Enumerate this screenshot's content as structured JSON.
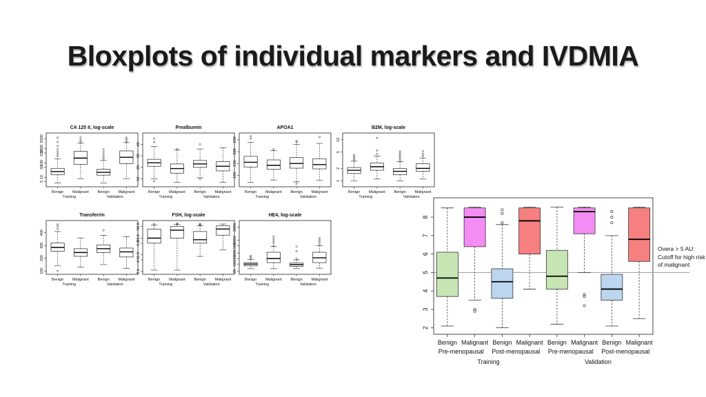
{
  "title": "Bloxplots of individual markers and IVDMIA",
  "small_common": {
    "group_labels": [
      "Benign",
      "Malignant",
      "Benign",
      "Malignant"
    ],
    "cohort_labels": [
      "Training",
      "Validation"
    ]
  },
  "chart_data": [
    {
      "type": "box",
      "title": "CA 125 II, log-scale",
      "scale": "log",
      "ylim": [
        3,
        9000
      ],
      "yticks": [
        5,
        10,
        50,
        100,
        500,
        1000,
        5000
      ],
      "ytick_labels": [
        "5",
        "10",
        "50",
        "100",
        "500",
        "1000",
        "5000"
      ],
      "categories": [
        "Benign",
        "Malignant",
        "Benign",
        "Malignant"
      ],
      "cohorts": [
        "Training",
        "Validation"
      ],
      "boxes": [
        {
          "low": 4,
          "q1": 15,
          "median": 25,
          "q3": 42,
          "high": 200,
          "outliers": [
            300,
            420,
            600,
            900,
            1500,
            3000,
            6000
          ]
        },
        {
          "low": 8,
          "q1": 80,
          "median": 220,
          "q3": 650,
          "high": 2500,
          "outliers": [
            3000,
            4000,
            6000
          ]
        },
        {
          "low": 4,
          "q1": 14,
          "median": 22,
          "q3": 36,
          "high": 150,
          "outliers": [
            200,
            280,
            400,
            600,
            900
          ]
        },
        {
          "low": 8,
          "q1": 90,
          "median": 250,
          "q3": 700,
          "high": 2700,
          "outliers": [
            3200,
            4500,
            6000
          ]
        }
      ]
    },
    {
      "type": "box",
      "title": "Prealbumin",
      "scale": "linear",
      "ylim": [
        5,
        48
      ],
      "yticks": [
        10,
        20,
        30,
        40
      ],
      "ytick_labels": [
        "10",
        "20",
        "30",
        "40"
      ],
      "categories": [
        "Benign",
        "Malignant",
        "Benign",
        "Malignant"
      ],
      "cohorts": [
        "Training",
        "Validation"
      ],
      "boxes": [
        {
          "low": 10,
          "q1": 21,
          "median": 24,
          "q3": 27,
          "high": 38,
          "outliers": [
            8,
            42,
            45
          ]
        },
        {
          "low": 7,
          "q1": 15,
          "median": 19,
          "q3": 23,
          "high": 35,
          "outliers": [
            36
          ]
        },
        {
          "low": 11,
          "q1": 20,
          "median": 23,
          "q3": 26,
          "high": 36,
          "outliers": [
            10,
            40
          ]
        },
        {
          "low": 7,
          "q1": 17,
          "median": 21,
          "q3": 25,
          "high": 37,
          "outliers": []
        }
      ]
    },
    {
      "type": "box",
      "title": "APOA1",
      "scale": "linear",
      "ylim": [
        60,
        270
      ],
      "yticks": [
        100,
        150,
        200,
        250
      ],
      "ytick_labels": [
        "100",
        "150",
        "200",
        "250"
      ],
      "categories": [
        "Benign",
        "Malignant",
        "Benign",
        "Malignant"
      ],
      "cohorts": [
        "Training",
        "Validation"
      ],
      "boxes": [
        {
          "low": 70,
          "q1": 135,
          "median": 155,
          "q3": 180,
          "high": 240,
          "outliers": [
            255,
            265
          ]
        },
        {
          "low": 80,
          "q1": 125,
          "median": 142,
          "q3": 165,
          "high": 205,
          "outliers": [
            210
          ]
        },
        {
          "low": 72,
          "q1": 130,
          "median": 150,
          "q3": 175,
          "high": 230,
          "outliers": [
            240,
            245,
            65
          ]
        },
        {
          "low": 78,
          "q1": 127,
          "median": 145,
          "q3": 170,
          "high": 235,
          "outliers": [
            262
          ]
        }
      ]
    },
    {
      "type": "box",
      "title": "B2M, log-scale",
      "scale": "log",
      "ylim": [
        0.8,
        13
      ],
      "yticks": [
        1,
        2,
        5,
        10
      ],
      "ytick_labels": [
        "1",
        "2",
        "5",
        "10"
      ],
      "categories": [
        "Benign",
        "Malignant",
        "Benign",
        "Malignant"
      ],
      "cohorts": [
        "Training",
        "Validation"
      ],
      "boxes": [
        {
          "low": 1.0,
          "q1": 1.5,
          "median": 1.8,
          "q3": 2.1,
          "high": 3.0,
          "outliers": [
            3.2,
            3.5,
            3.8,
            4.2
          ]
        },
        {
          "low": 1.1,
          "q1": 1.8,
          "median": 2.2,
          "q3": 2.7,
          "high": 4.0,
          "outliers": [
            4.5,
            5.5,
            11
          ]
        },
        {
          "low": 1.0,
          "q1": 1.4,
          "median": 1.7,
          "q3": 2.0,
          "high": 2.9,
          "outliers": [
            3.1,
            3.4,
            3.8,
            4.2,
            4.6,
            5.2
          ]
        },
        {
          "low": 1.1,
          "q1": 1.7,
          "median": 2.0,
          "q3": 2.6,
          "high": 3.6,
          "outliers": [
            4.0,
            4.5,
            5.2
          ]
        }
      ]
    },
    {
      "type": "box",
      "title": "Transferrin",
      "scale": "linear",
      "ylim": [
        90,
        480
      ],
      "yticks": [
        100,
        200,
        300,
        400
      ],
      "ytick_labels": [
        "100",
        "200",
        "300",
        "400"
      ],
      "categories": [
        "Benign",
        "Malignant",
        "Benign",
        "Malignant"
      ],
      "cohorts": [
        "Training",
        "Validation"
      ],
      "boxes": [
        {
          "low": 140,
          "q1": 255,
          "median": 285,
          "q3": 320,
          "high": 410,
          "outliers": [
            430,
            450,
            465,
            100
          ]
        },
        {
          "low": 130,
          "q1": 215,
          "median": 245,
          "q3": 275,
          "high": 360,
          "outliers": []
        },
        {
          "low": 150,
          "q1": 245,
          "median": 275,
          "q3": 305,
          "high": 380,
          "outliers": [
            420
          ]
        },
        {
          "low": 120,
          "q1": 210,
          "median": 250,
          "q3": 280,
          "high": 370,
          "outliers": []
        }
      ]
    },
    {
      "type": "box",
      "title": "FSH, log-scale",
      "scale": "log",
      "ylim": [
        0.09,
        85
      ],
      "yticks": [
        0.1,
        0.5,
        1.0,
        5.0,
        10.0,
        50.0
      ],
      "ytick_labels": [
        "0.1",
        "0.5",
        "1.0",
        "5.0",
        "10.0",
        "50.0"
      ],
      "categories": [
        "Benign",
        "Malignant",
        "Benign",
        "Malignant"
      ],
      "cohorts": [
        "Training",
        "Validation"
      ],
      "boxes": [
        {
          "low": 0.12,
          "q1": 5,
          "median": 10,
          "q3": 35,
          "high": 60,
          "outliers": [
            70
          ]
        },
        {
          "low": 0.12,
          "q1": 10,
          "median": 30,
          "q3": 50,
          "high": 65,
          "outliers": [
            70,
            75
          ]
        },
        {
          "low": 0.8,
          "q1": 5,
          "median": 8,
          "q3": 25,
          "high": 55,
          "outliers": [
            60,
            65,
            70
          ]
        },
        {
          "low": 2,
          "q1": 15,
          "median": 35,
          "q3": 55,
          "high": 70,
          "outliers": []
        }
      ]
    },
    {
      "type": "box",
      "title": "HE4, log-scale",
      "scale": "log",
      "ylim": [
        18,
        9000
      ],
      "yticks": [
        20,
        50,
        100,
        200,
        500,
        1000,
        5000
      ],
      "ytick_labels": [
        "20",
        "50",
        "100",
        "200",
        "500",
        "1000",
        "5000"
      ],
      "categories": [
        "Benign",
        "Malignant",
        "Benign",
        "Malignant"
      ],
      "cohorts": [
        "Training",
        "Validation"
      ],
      "boxes": [
        {
          "low": 28,
          "q1": 40,
          "median": 50,
          "q3": 60,
          "high": 90,
          "outliers": [
            100,
            120,
            140
          ]
        },
        {
          "low": 28,
          "q1": 60,
          "median": 100,
          "q3": 220,
          "high": 450,
          "outliers": [
            500,
            700,
            900,
            1200,
            1600
          ]
        },
        {
          "low": 28,
          "q1": 38,
          "median": 47,
          "q3": 58,
          "high": 85,
          "outliers": [
            100,
            250,
            450
          ]
        },
        {
          "low": 30,
          "q1": 60,
          "median": 110,
          "q3": 220,
          "high": 500,
          "outliers": [
            600,
            800,
            1000,
            1300
          ]
        }
      ]
    },
    {
      "type": "box",
      "title": "",
      "scale": "linear",
      "ylim": [
        1.8,
        8.9
      ],
      "yticks": [
        2,
        3,
        4,
        5,
        6,
        7,
        8
      ],
      "ytick_labels": [
        "2",
        "3",
        "4",
        "5",
        "6",
        "7",
        "8"
      ],
      "categories": [
        "Benign",
        "Malignant",
        "Benign",
        "Malignant",
        "Benign",
        "Malignant",
        "Benign",
        "Malignant"
      ],
      "subgroups": [
        "Pre-menopausal",
        "Post-menopausal",
        "Pre-menopausal",
        "Post-menopausal"
      ],
      "cohorts": [
        "Training",
        "Validation"
      ],
      "colors": [
        "#c6e5b3",
        "#f38cf3",
        "#bdd6ef",
        "#f67f7f",
        "#c6e5b3",
        "#f38cf3",
        "#bdd6ef",
        "#f67f7f"
      ],
      "reference_line": 5.0,
      "boxes": [
        {
          "low": 2.1,
          "q1": 3.7,
          "median": 4.7,
          "q3": 6.1,
          "high": 8.5,
          "outliers": []
        },
        {
          "low": 3.5,
          "q1": 6.4,
          "median": 8.0,
          "q3": 8.5,
          "high": 8.55,
          "outliers": [
            3.0,
            2.9
          ]
        },
        {
          "low": 2.0,
          "q1": 3.6,
          "median": 4.5,
          "q3": 5.2,
          "high": 7.6,
          "outliers": [
            7.7,
            8.2,
            8.4
          ]
        },
        {
          "low": 4.1,
          "q1": 6.0,
          "median": 7.8,
          "q3": 8.5,
          "high": 8.55,
          "outliers": []
        },
        {
          "low": 2.2,
          "q1": 4.1,
          "median": 4.8,
          "q3": 6.2,
          "high": 8.55,
          "outliers": []
        },
        {
          "low": 5.0,
          "q1": 7.1,
          "median": 8.3,
          "q3": 8.5,
          "high": 8.55,
          "outliers": [
            3.8,
            3.7,
            3.2
          ]
        },
        {
          "low": 2.1,
          "q1": 3.5,
          "median": 4.1,
          "q3": 4.9,
          "high": 7.0,
          "outliers": [
            7.7,
            8.0,
            8.3
          ]
        },
        {
          "low": 2.5,
          "q1": 5.6,
          "median": 6.8,
          "q3": 8.5,
          "high": 8.55,
          "outliers": []
        }
      ]
    }
  ],
  "annotation": {
    "line1": "Overa > 5 AU:",
    "line2": "Cutoff for high risk",
    "line3": "of malignant"
  }
}
